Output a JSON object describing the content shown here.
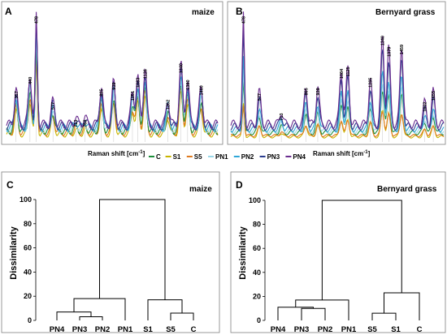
{
  "colors": {
    "C": "#1c8e3a",
    "S1": "#c8b400",
    "S5": "#e07a1f",
    "PN1": "#9ad7e8",
    "PN2": "#2ea7d8",
    "PN3": "#2a3c8f",
    "PN4": "#6a2d8f"
  },
  "legend": [
    "C",
    "S1",
    "S5",
    "PN1",
    "PN2",
    "PN3",
    "PN4"
  ],
  "chart_data": [
    {
      "type": "line",
      "panel": "A",
      "title": "maize",
      "xlabel": "Raman shift [cm⁻¹]",
      "xlabel_base": "Raman shift [cm",
      "xlabel_sup": "-1",
      "xlabel_close": "]",
      "peaks": [
        {
          "label": "357",
          "x": 357,
          "h": 0.32
        },
        {
          "label": "440",
          "x": 440,
          "h": 0.45
        },
        {
          "label": "478",
          "x": 478,
          "h": 1.0
        },
        {
          "label": "577",
          "x": 577,
          "h": 0.22
        },
        {
          "label": "713",
          "x": 713,
          "h": 0.06
        },
        {
          "label": "768",
          "x": 768,
          "h": 0.06
        },
        {
          "label": "865",
          "x": 865,
          "h": 0.34
        },
        {
          "label": "939",
          "x": 939,
          "h": 0.4
        },
        {
          "label": "1051",
          "x": 1051,
          "h": 0.3
        },
        {
          "label": "1083",
          "x": 1083,
          "h": 0.42
        },
        {
          "label": "1126",
          "x": 1126,
          "h": 0.5
        },
        {
          "label": "1262",
          "x": 1262,
          "h": 0.22
        },
        {
          "label": "1340",
          "x": 1340,
          "h": 0.55
        },
        {
          "label": "1380",
          "x": 1380,
          "h": 0.4
        },
        {
          "label": "1460",
          "x": 1460,
          "h": 0.35
        }
      ],
      "xrange": [
        300,
        1560
      ],
      "series_scale": {
        "C": 0.78,
        "S1": 0.68,
        "S5": 0.72,
        "PN1": 0.85,
        "PN2": 0.9,
        "PN3": 0.95,
        "PN4": 1.0
      }
    },
    {
      "type": "line",
      "panel": "B",
      "title": "Bernyard grass",
      "xlabel": "Raman shift [cm⁻¹]",
      "xlabel_base": "Raman shift [cm",
      "xlabel_sup": "-1",
      "xlabel_close": "]",
      "peaks": [
        {
          "label": "478",
          "x": 478,
          "h": 1.0
        },
        {
          "label": "577",
          "x": 577,
          "h": 0.3
        },
        {
          "label": "713",
          "x": 713,
          "h": 0.12
        },
        {
          "label": "865",
          "x": 865,
          "h": 0.35
        },
        {
          "label": "939",
          "x": 939,
          "h": 0.35
        },
        {
          "label": "1084",
          "x": 1084,
          "h": 0.5
        },
        {
          "label": "1125",
          "x": 1125,
          "h": 0.52
        },
        {
          "label": "1265",
          "x": 1265,
          "h": 0.42
        },
        {
          "label": "1340",
          "x": 1340,
          "h": 0.8
        },
        {
          "label": "1379",
          "x": 1379,
          "h": 0.7
        },
        {
          "label": "1459",
          "x": 1459,
          "h": 0.72
        },
        {
          "label": "1602",
          "x": 1602,
          "h": 0.2
        },
        {
          "label": "1655",
          "x": 1655,
          "h": 0.3
        }
      ],
      "xrange": [
        400,
        1720
      ],
      "series_scale": {
        "C": 0.5,
        "S1": 0.3,
        "S5": 0.28,
        "PN1": 0.55,
        "PN2": 0.65,
        "PN3": 0.85,
        "PN4": 1.0
      }
    },
    {
      "type": "dendrogram",
      "panel": "C",
      "title": "maize",
      "ylabel": "Dissimilarity",
      "yticks": [
        0,
        20,
        40,
        60,
        80,
        100
      ],
      "ylim": [
        0,
        100
      ],
      "leaves": [
        "PN4",
        "PN3",
        "PN2",
        "PN1",
        "S1",
        "S5",
        "C"
      ],
      "merges": [
        {
          "a": "L1",
          "b": "L2",
          "h": 3
        },
        {
          "a": "L0",
          "b": "M0",
          "h": 7
        },
        {
          "a": "M1",
          "b": "L3",
          "h": 18
        },
        {
          "a": "L5",
          "b": "L6",
          "h": 6
        },
        {
          "a": "L4",
          "b": "M3",
          "h": 17
        },
        {
          "a": "M2",
          "b": "M4",
          "h": 100
        }
      ]
    },
    {
      "type": "dendrogram",
      "panel": "D",
      "title": "Bernyard grass",
      "ylabel": "Dissimilarity",
      "yticks": [
        0,
        20,
        40,
        60,
        80,
        100
      ],
      "ylim": [
        0,
        100
      ],
      "leaves": [
        "PN4",
        "PN3",
        "PN2",
        "PN1",
        "S5",
        "S1",
        "C"
      ],
      "merges": [
        {
          "a": "L1",
          "b": "L2",
          "h": 10
        },
        {
          "a": "L0",
          "b": "M0",
          "h": 11
        },
        {
          "a": "M1",
          "b": "L3",
          "h": 17
        },
        {
          "a": "L4",
          "b": "L5",
          "h": 6
        },
        {
          "a": "M3",
          "b": "L6",
          "h": 23
        },
        {
          "a": "M2",
          "b": "M4",
          "h": 100
        }
      ]
    }
  ]
}
